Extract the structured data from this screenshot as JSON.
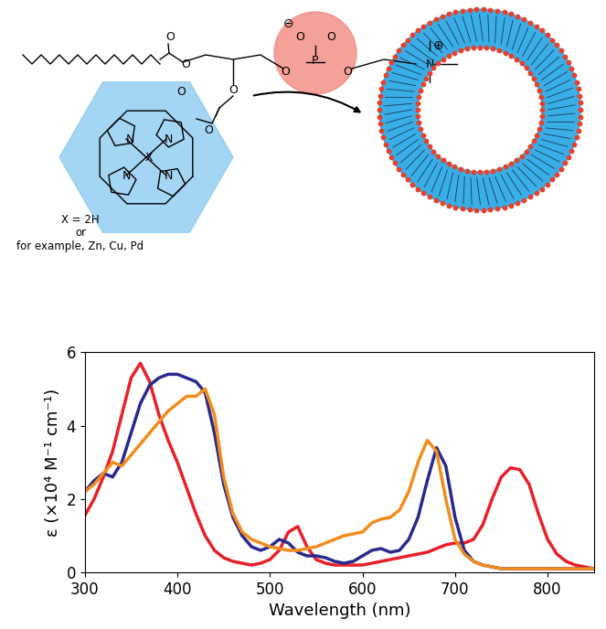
{
  "diagram": {
    "metal_label": [
      "X = 2H",
      "or",
      "for example, Zn, Cu, Pd"
    ],
    "atoms": [
      "O",
      "O",
      "O",
      "O",
      "O",
      "P",
      "O",
      "N",
      "O",
      "O",
      "O",
      "N",
      "N",
      "N",
      "N",
      "X"
    ],
    "charges": [
      "⊖",
      "⊕"
    ]
  },
  "chart_data": {
    "type": "line",
    "x_label": "Wavelength (nm)",
    "y_label": "ε (×10⁴ M⁻¹ cm⁻¹)",
    "x": [
      300,
      310,
      320,
      330,
      340,
      350,
      360,
      370,
      380,
      390,
      400,
      410,
      420,
      430,
      440,
      450,
      460,
      470,
      480,
      490,
      500,
      510,
      520,
      530,
      540,
      550,
      560,
      570,
      580,
      590,
      600,
      610,
      620,
      630,
      640,
      650,
      660,
      670,
      680,
      690,
      700,
      710,
      720,
      730,
      740,
      750,
      760,
      770,
      780,
      790,
      800,
      810,
      820,
      830,
      840,
      850
    ],
    "series": [
      {
        "color": "#e8202a",
        "values": [
          1.55,
          2.0,
          2.6,
          3.3,
          4.3,
          5.3,
          5.7,
          5.2,
          4.3,
          3.6,
          3.0,
          2.3,
          1.6,
          1.0,
          0.6,
          0.4,
          0.3,
          0.25,
          0.2,
          0.25,
          0.35,
          0.6,
          1.1,
          1.25,
          0.7,
          0.35,
          0.25,
          0.2,
          0.2,
          0.2,
          0.2,
          0.25,
          0.3,
          0.35,
          0.4,
          0.45,
          0.5,
          0.55,
          0.65,
          0.75,
          0.8,
          0.8,
          0.9,
          1.3,
          2.0,
          2.6,
          2.85,
          2.8,
          2.4,
          1.6,
          0.9,
          0.5,
          0.3,
          0.2,
          0.15,
          0.1
        ]
      },
      {
        "color": "#2b2a8c",
        "values": [
          2.2,
          2.5,
          2.7,
          2.6,
          3.0,
          3.8,
          4.6,
          5.1,
          5.3,
          5.4,
          5.4,
          5.3,
          5.2,
          4.9,
          3.8,
          2.4,
          1.5,
          1.0,
          0.7,
          0.6,
          0.7,
          0.9,
          0.8,
          0.55,
          0.45,
          0.45,
          0.4,
          0.3,
          0.25,
          0.3,
          0.45,
          0.6,
          0.65,
          0.55,
          0.6,
          0.9,
          1.5,
          2.5,
          3.4,
          2.9,
          1.5,
          0.6,
          0.3,
          0.2,
          0.15,
          0.1,
          0.1,
          0.1,
          0.1,
          0.1,
          0.1,
          0.1,
          0.1,
          0.1,
          0.1,
          0.1
        ]
      },
      {
        "color": "#f28c1c",
        "values": [
          2.2,
          2.4,
          2.7,
          3.0,
          2.9,
          3.2,
          3.5,
          3.8,
          4.1,
          4.4,
          4.6,
          4.8,
          4.8,
          5.0,
          4.3,
          2.6,
          1.6,
          1.1,
          0.9,
          0.8,
          0.7,
          0.65,
          0.6,
          0.6,
          0.65,
          0.7,
          0.8,
          0.9,
          1.0,
          1.05,
          1.1,
          1.35,
          1.45,
          1.5,
          1.7,
          2.2,
          3.0,
          3.6,
          3.3,
          2.0,
          0.9,
          0.5,
          0.3,
          0.2,
          0.15,
          0.1,
          0.1,
          0.1,
          0.1,
          0.1,
          0.1,
          0.1,
          0.1,
          0.1,
          0.1,
          0.1
        ]
      }
    ],
    "xlim": [
      300,
      850
    ],
    "xticks": [
      300,
      400,
      500,
      600,
      700,
      800
    ],
    "ylim": [
      0,
      6
    ],
    "yticks": [
      0,
      2,
      4,
      6
    ],
    "grid": false
  }
}
